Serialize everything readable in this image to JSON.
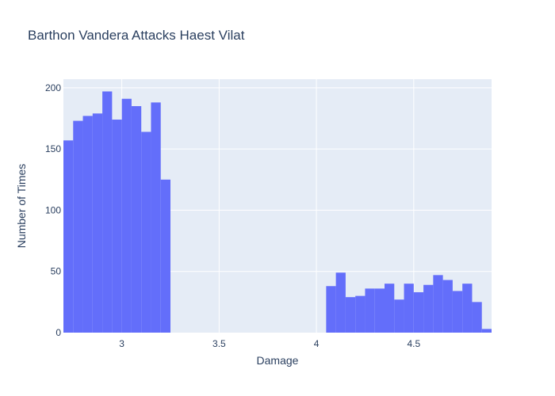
{
  "chart_data": {
    "type": "bar",
    "title": "Barthon Vandera Attacks Haest Vilat",
    "xlabel": "Damage",
    "ylabel": "Number of Times",
    "xlim": [
      2.7,
      4.9
    ],
    "ylim": [
      0,
      207
    ],
    "x_ticks": [
      3,
      3.5,
      4,
      4.5
    ],
    "x_tick_labels": [
      "3",
      "3.5",
      "4",
      "4.5"
    ],
    "y_ticks": [
      0,
      50,
      100,
      150,
      200
    ],
    "y_tick_labels": [
      "0",
      "50",
      "100",
      "150",
      "200"
    ],
    "bin_width": 0.05,
    "bins": [
      {
        "x0": 2.7,
        "value": 157
      },
      {
        "x0": 2.75,
        "value": 173
      },
      {
        "x0": 2.8,
        "value": 177
      },
      {
        "x0": 2.85,
        "value": 179
      },
      {
        "x0": 2.9,
        "value": 197
      },
      {
        "x0": 2.95,
        "value": 174
      },
      {
        "x0": 3.0,
        "value": 191
      },
      {
        "x0": 3.05,
        "value": 185
      },
      {
        "x0": 3.1,
        "value": 164
      },
      {
        "x0": 3.15,
        "value": 188
      },
      {
        "x0": 3.2,
        "value": 125
      },
      {
        "x0": 4.05,
        "value": 38
      },
      {
        "x0": 4.1,
        "value": 49
      },
      {
        "x0": 4.15,
        "value": 29
      },
      {
        "x0": 4.2,
        "value": 30
      },
      {
        "x0": 4.25,
        "value": 36
      },
      {
        "x0": 4.3,
        "value": 36
      },
      {
        "x0": 4.35,
        "value": 40
      },
      {
        "x0": 4.4,
        "value": 27
      },
      {
        "x0": 4.45,
        "value": 40
      },
      {
        "x0": 4.5,
        "value": 33
      },
      {
        "x0": 4.55,
        "value": 39
      },
      {
        "x0": 4.6,
        "value": 47
      },
      {
        "x0": 4.65,
        "value": 43
      },
      {
        "x0": 4.7,
        "value": 34
      },
      {
        "x0": 4.75,
        "value": 40
      },
      {
        "x0": 4.8,
        "value": 25
      },
      {
        "x0": 4.85,
        "value": 3
      }
    ],
    "grid": true,
    "colors": {
      "bar": "#636efa",
      "plot_background": "#e5ecf6",
      "grid": "#ffffff",
      "text": "#2a3f5f"
    }
  }
}
